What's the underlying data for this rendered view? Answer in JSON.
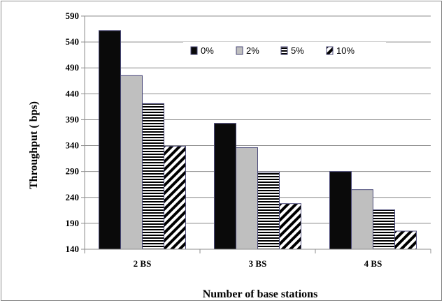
{
  "chart_data": {
    "type": "bar",
    "title": "",
    "xlabel": "Number of base stations",
    "ylabel": "Throughput ( bps)",
    "categories": [
      "2 BS",
      "3 BS",
      "4 BS"
    ],
    "ylim": [
      140,
      590
    ],
    "yticks": [
      140,
      190,
      240,
      290,
      340,
      390,
      440,
      490,
      540,
      590
    ],
    "grid": true,
    "legend_position": "top-right",
    "series": [
      {
        "name": "0%",
        "values": [
          562,
          383,
          290
        ],
        "fill": "solid-black"
      },
      {
        "name": "2%",
        "values": [
          475,
          336,
          255
        ],
        "fill": "solid-gray"
      },
      {
        "name": "5%",
        "values": [
          421,
          289,
          216
        ],
        "fill": "horizontal-stripes"
      },
      {
        "name": "10%",
        "values": [
          339,
          228,
          175
        ],
        "fill": "diagonal-stripes"
      }
    ],
    "colors": {
      "black": "#0a0a0a",
      "gray": "#bfbfbf",
      "bar_outline": "#4b4a7a",
      "grid": "#8c8c8c"
    }
  }
}
